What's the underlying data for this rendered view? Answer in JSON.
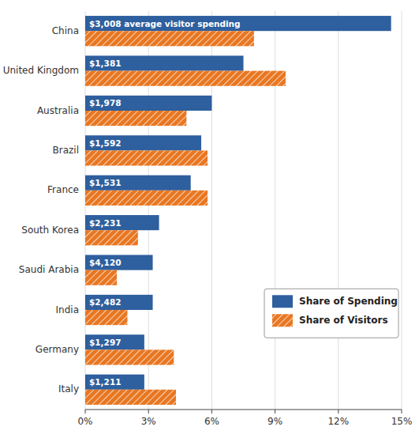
{
  "chart_data": {
    "type": "bar",
    "orientation": "horizontal",
    "categories": [
      "China",
      "United Kingdom",
      "Australia",
      "Brazil",
      "France",
      "South Korea",
      "Saudi Arabia",
      "India",
      "Germany",
      "Italy"
    ],
    "series": [
      {
        "name": "Share of Spending",
        "color": "#2E5F9E",
        "values": [
          14.5,
          7.5,
          6.0,
          5.5,
          5.0,
          3.5,
          3.2,
          3.2,
          2.8,
          2.8
        ]
      },
      {
        "name": "Share of Visitors",
        "color": "#E87722",
        "values": [
          8.0,
          9.5,
          4.8,
          5.8,
          5.8,
          2.5,
          1.5,
          2.0,
          4.2,
          4.3
        ]
      }
    ],
    "annotations": [
      "$3,008 average visitor spending",
      "$1,381",
      "$1,978",
      "$1,592",
      "$1,531",
      "$2,231",
      "$4,120",
      "$2,482",
      "$1,297",
      "$1,211"
    ],
    "xlim": [
      0,
      15
    ],
    "xticks": [
      {
        "value": 0,
        "label": "0%"
      },
      {
        "value": 3,
        "label": "3%"
      },
      {
        "value": 6,
        "label": "6%"
      },
      {
        "value": 9,
        "label": "9%"
      },
      {
        "value": 12,
        "label": "12%"
      },
      {
        "value": 15,
        "label": "15%"
      }
    ],
    "grid": true,
    "legend": "lower right"
  }
}
